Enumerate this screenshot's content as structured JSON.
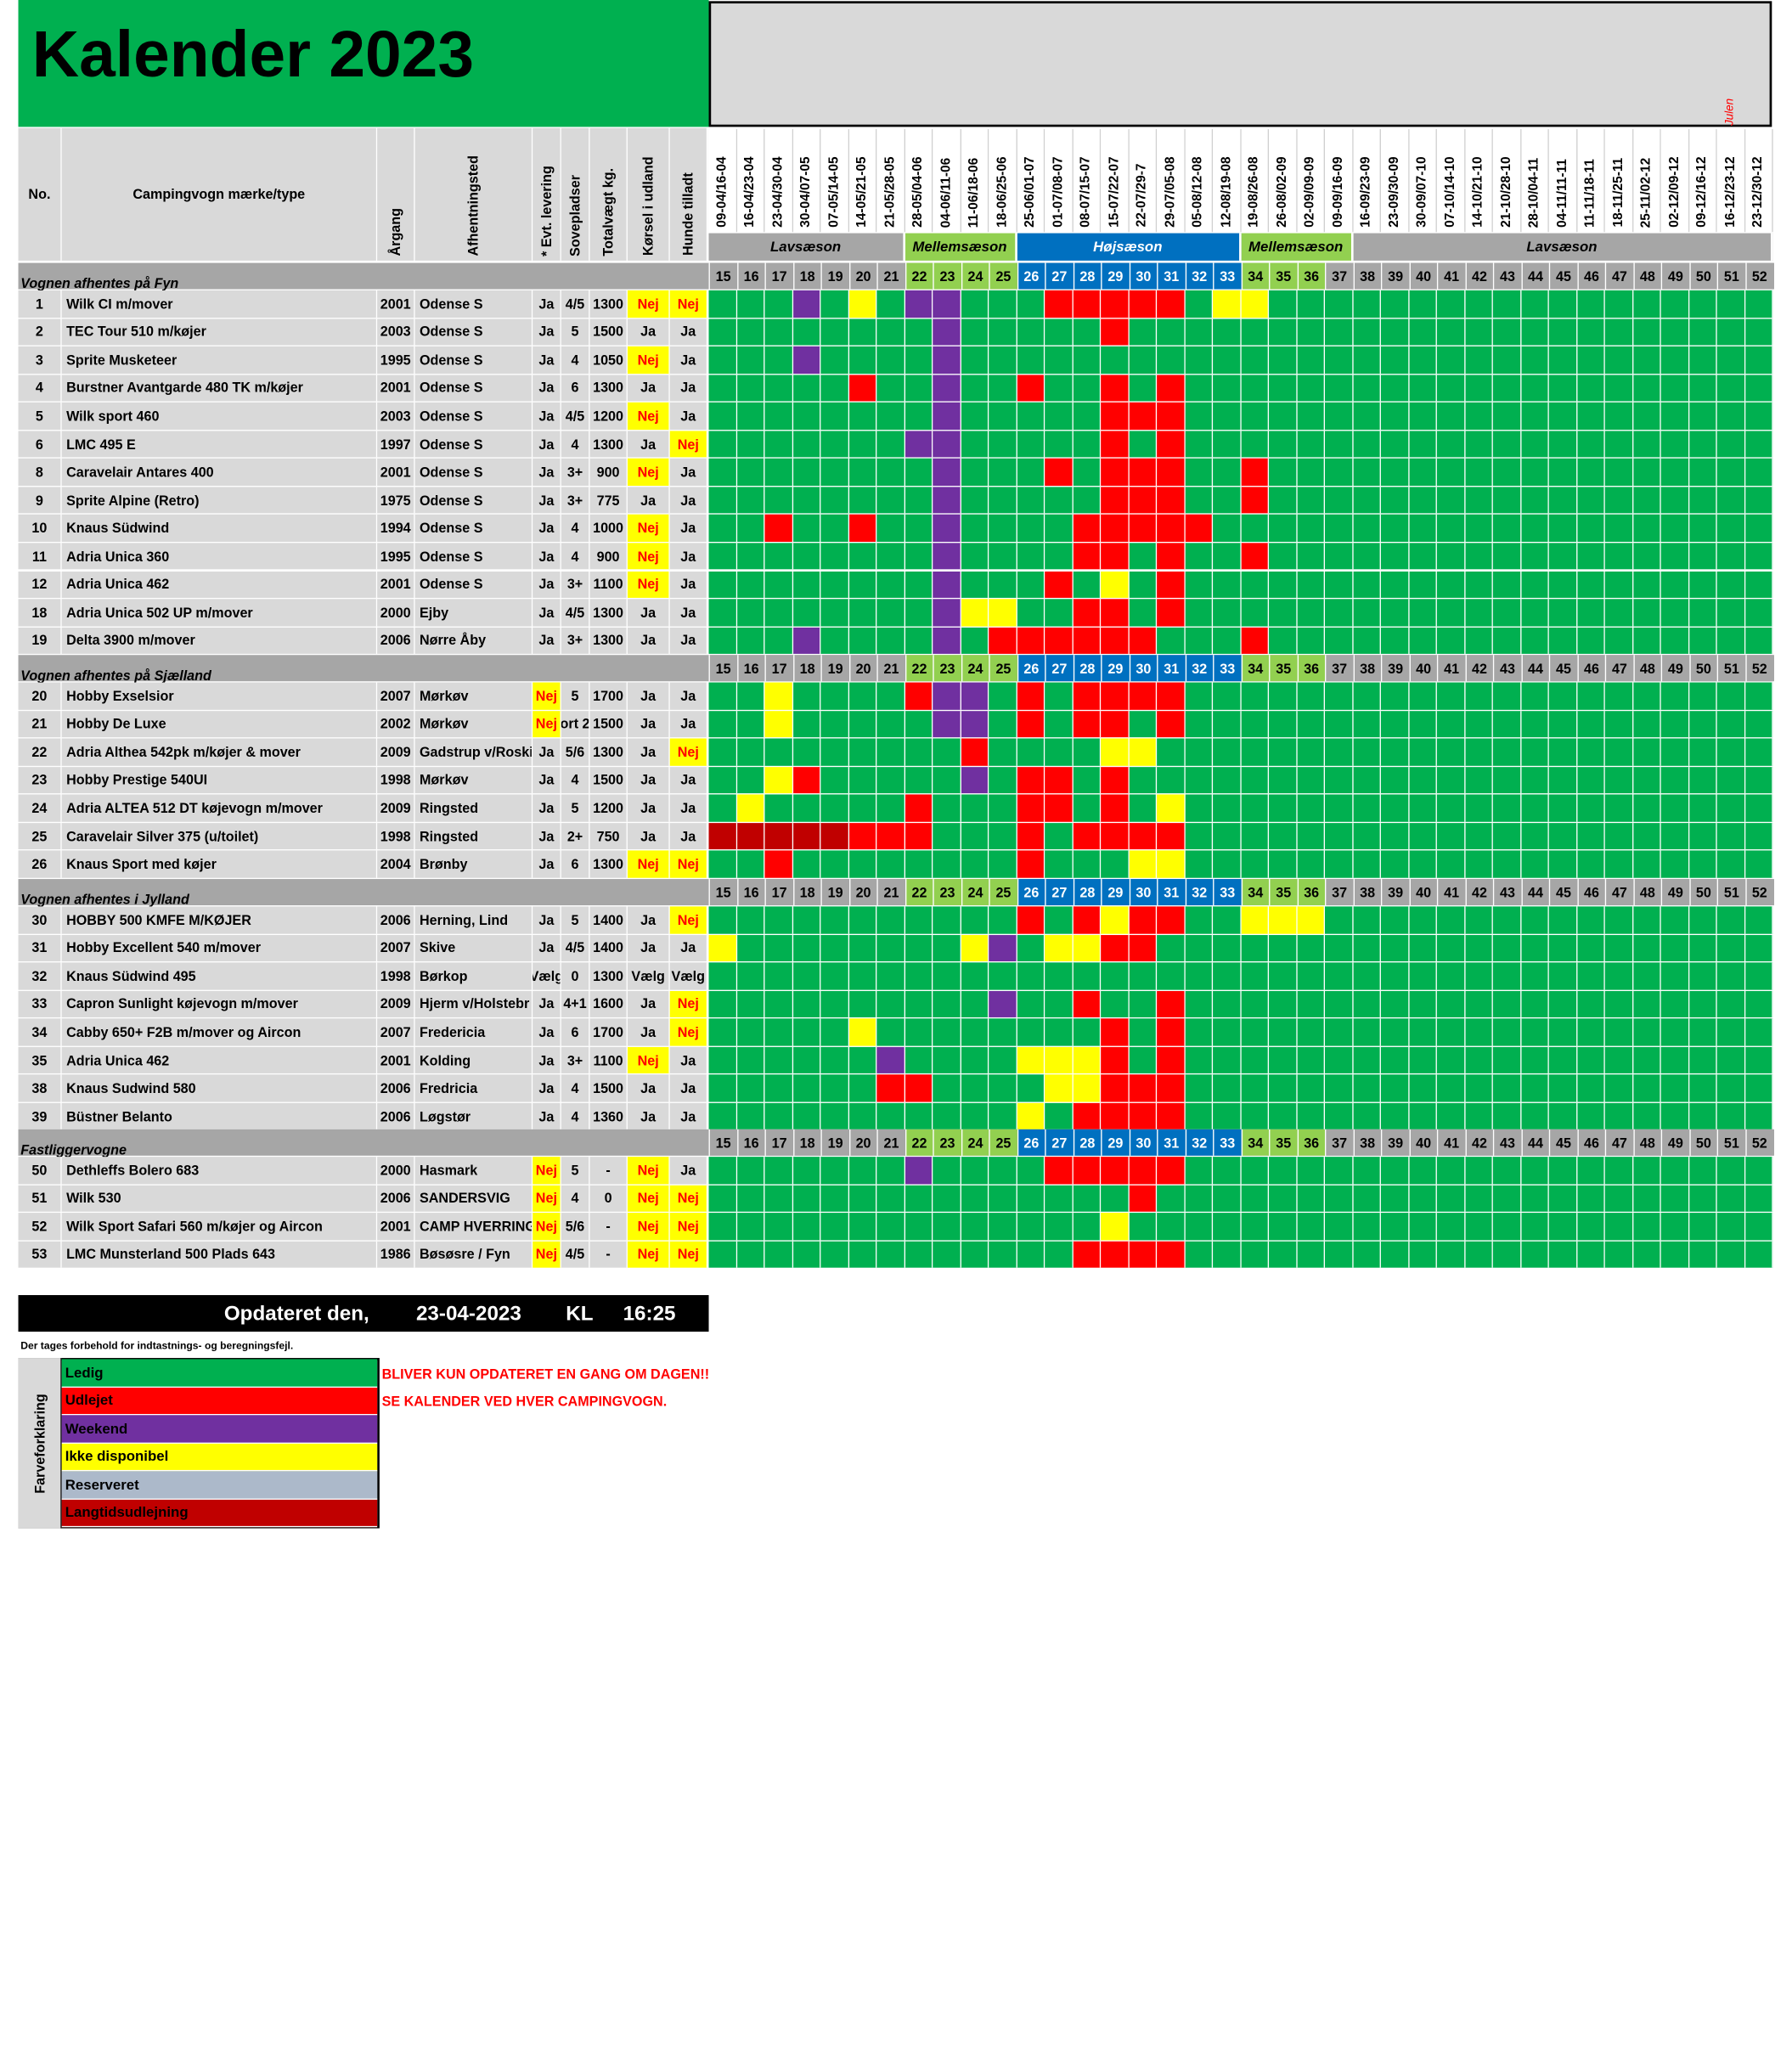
{
  "title": "Kalender 2023",
  "julen": "Julen",
  "headers": {
    "no": "No.",
    "type": "Campingvogn mærke/type",
    "year": "Årgang",
    "place": "Afhentningsted",
    "delivery": "* Evt. levering",
    "beds": "Sovepladser",
    "weight": "Totalvægt kg.",
    "abroad": "Kørsel i udland",
    "dogs": "Hunde tilladt"
  },
  "dates": [
    "09-04/16-04",
    "16-04/23-04",
    "23-04/30-04",
    "30-04/07-05",
    "07-05/14-05",
    "14-05/21-05",
    "21-05/28-05",
    "28-05/04-06",
    "04-06/11-06",
    "11-06/18-06",
    "18-06/25-06",
    "25-06/01-07",
    "01-07/08-07",
    "08-07/15-07",
    "15-07/22-07",
    "22-07/29-7",
    "29-07/05-08",
    "05-08/12-08",
    "12-08/19-08",
    "19-08/26-08",
    "26-08/02-09",
    "02-09/09-09",
    "09-09/16-09",
    "16-09/23-09",
    "23-09/30-09",
    "30-09/07-10",
    "07-10/14-10",
    "14-10/21-10",
    "21-10/28-10",
    "28-10/04-11",
    "04-11/11-11",
    "11-11/18-11",
    "18-11/25-11",
    "25-11/02-12",
    "02-12/09-12",
    "09-12/16-12",
    "16-12/23-12",
    "23-12/30-12"
  ],
  "weeks": [
    "15",
    "16",
    "17",
    "18",
    "19",
    "20",
    "21",
    "22",
    "23",
    "24",
    "25",
    "26",
    "27",
    "28",
    "29",
    "30",
    "31",
    "32",
    "33",
    "34",
    "35",
    "36",
    "37",
    "38",
    "39",
    "40",
    "41",
    "42",
    "43",
    "44",
    "45",
    "46",
    "47",
    "48",
    "49",
    "50",
    "51",
    "52"
  ],
  "seasons": [
    {
      "label": "Lavsæson",
      "span": 7,
      "color": "#a6a6a6"
    },
    {
      "label": "Mellemsæson",
      "span": 4,
      "color": "#92d050"
    },
    {
      "label": "Højsæson",
      "span": 8,
      "color": "#0070c0"
    },
    {
      "label": "Mellemsæson",
      "span": 4,
      "color": "#92d050"
    },
    {
      "label": "Lavsæson",
      "span": 15,
      "color": "#a6a6a6"
    }
  ],
  "week_colors": {
    "g": "#a6a6a6",
    "l": "#92d050",
    "b": "#0070c0"
  },
  "status_colors": {
    "G": "#00b050",
    "R": "#ff0000",
    "P": "#7030a0",
    "Y": "#ffff00",
    "S": "#acb9ca",
    "D": "#c00000"
  },
  "sections": [
    {
      "label": "Vognen afhentes på Fyn",
      "rows": [
        {
          "no": "1",
          "type": "Wilk CI m/mover",
          "year": "2001",
          "place": "Odense S",
          "delivery": "Ja",
          "beds": "4/5",
          "weight": "1300",
          "abroad": "Nej",
          "dogs": "Nej",
          "cal": "GGGPGYGPPGGGRRRRRGYYGGGGGGGGGGGGGGGGGG"
        },
        {
          "no": "2",
          "type": "TEC Tour 510 m/køjer",
          "year": "2003",
          "place": "Odense S",
          "delivery": "Ja",
          "beds": "5",
          "weight": "1500",
          "abroad": "Ja",
          "dogs": "Ja",
          "cal": "GGGGGGGGPGGGGGRGGGGGGGGGGGGGGGGGGGGGGG"
        },
        {
          "no": "3",
          "type": "Sprite Musketeer",
          "year": "1995",
          "place": "Odense S",
          "delivery": "Ja",
          "beds": "4",
          "weight": "1050",
          "abroad": "Nej",
          "dogs": "Ja",
          "cal": "GGGPGGGGPGGGGGGGGGGGGGGGGGGGGGGGGGGGGG"
        },
        {
          "no": "4",
          "type": "Burstner Avantgarde 480 TK m/køjer",
          "year": "2001",
          "place": "Odense S",
          "delivery": "Ja",
          "beds": "6",
          "weight": "1300",
          "abroad": "Ja",
          "dogs": "Ja",
          "cal": "GGGGGRGGPGGRGGRGRGGGGGGGGGGGGGGGGGGGGG"
        },
        {
          "no": "5",
          "type": "Wilk sport 460",
          "year": "2003",
          "place": "Odense S",
          "delivery": "Ja",
          "beds": "4/5",
          "weight": "1200",
          "abroad": "Nej",
          "dogs": "Ja",
          "cal": "GGGGGGGGPGGGGGRRRGGGGGGGGGGGGGGGGGGGGG"
        },
        {
          "no": "6",
          "type": "LMC 495 E",
          "year": "1997",
          "place": "Odense S",
          "delivery": "Ja",
          "beds": "4",
          "weight": "1300",
          "abroad": "Ja",
          "dogs": "Nej",
          "cal": "GGGGGGGPPGGGGGRGRGGGGGGGGGGGGGGGGGGGGG"
        },
        {
          "no": "8",
          "type": "Caravelair Antares 400",
          "year": "2001",
          "place": "Odense S",
          "delivery": "Ja",
          "beds": "3+",
          "weight": "900",
          "abroad": "Nej",
          "dogs": "Ja",
          "cal": "GGGGGGGGPGGGRGRRRGGRGGGGGGGGGGGGGGGGGG"
        },
        {
          "no": "9",
          "type": "Sprite Alpine (Retro)",
          "year": "1975",
          "place": "Odense S",
          "delivery": "Ja",
          "beds": "3+",
          "weight": "775",
          "abroad": "Ja",
          "dogs": "Ja",
          "cal": "GGGGGGGGPGGGGGRRRGGRGGGGGGGGGGGGGGGGGG"
        },
        {
          "no": "10",
          "type": "Knaus Südwind",
          "year": "1994",
          "place": "Odense S",
          "delivery": "Ja",
          "beds": "4",
          "weight": "1000",
          "abroad": "Nej",
          "dogs": "Ja",
          "cal": "GGRGGRGGPGGGGRRRRRGGGGGGGGGGGGGGGGGGGG"
        },
        {
          "no": "11",
          "type": "Adria Unica 360",
          "year": "1995",
          "place": "Odense S",
          "delivery": "Ja",
          "beds": "4",
          "weight": "900",
          "abroad": "Nej",
          "dogs": "Ja",
          "cal": "GGGGGGGGPGGGGRRGRGGRGGGGGGGGGGGGGGGGGG"
        },
        {
          "no": "12",
          "type": "Adria Unica 462",
          "year": "2001",
          "place": "Odense S",
          "delivery": "Ja",
          "beds": "3+",
          "weight": "1100",
          "abroad": "Nej",
          "dogs": "Ja",
          "cal": "GGGGGGGGPGGGRGYGRGGGGGGGGGGGGGGGGGGGGG"
        },
        {
          "no": "18",
          "type": "Adria Unica 502 UP m/mover",
          "year": "2000",
          "place": "Ejby",
          "delivery": "Ja",
          "beds": "4/5",
          "weight": "1300",
          "abroad": "Ja",
          "dogs": "Ja",
          "cal": "GGGGGGGGPYYGGRRGRGGGGGGGGGGGGGGGGGGGGG"
        },
        {
          "no": "19",
          "type": "Delta 3900 m/mover",
          "year": "2006",
          "place": "Nørre Åby",
          "delivery": "Ja",
          "beds": "3+",
          "weight": "1300",
          "abroad": "Ja",
          "dogs": "Ja",
          "cal": "GGGPGGGGPGRRRRRRGGGRGGGGGGGGGGGGGGGGGG"
        }
      ]
    },
    {
      "label": "Vognen afhentes på Sjælland",
      "rows": [
        {
          "no": "20",
          "type": "Hobby Exselsior",
          "year": "2007",
          "place": "Mørkøv",
          "delivery": "Nej",
          "beds": "5",
          "weight": "1700",
          "abroad": "Ja",
          "dogs": "Ja",
          "cal": "GGYGGGGRPPGRGRRRRGGGGGGGGGGGGGGGGGGGGG"
        },
        {
          "no": "21",
          "type": "Hobby De Luxe",
          "year": "2002",
          "place": "Mørkøv",
          "delivery": "Nej",
          "beds": "ort 2",
          "weight": "1500",
          "abroad": "Ja",
          "dogs": "Ja",
          "cal": "GGYGGGGGPPGRGRRGRGGGGGGGGGGGGGGGGGGGGG"
        },
        {
          "no": "22",
          "type": "Adria Althea 542pk m/køjer & mover",
          "year": "2009",
          "place": "Gadstrup v/Roskil",
          "delivery": "Ja",
          "beds": "5/6",
          "weight": "1300",
          "abroad": "Ja",
          "dogs": "Nej",
          "cal": "GGGGGGGGGRGGGGYYGGGGGGGGGGGGGGGGGGGGGG"
        },
        {
          "no": "23",
          "type": "Hobby Prestige 540UI",
          "year": "1998",
          "place": "Mørkøv",
          "delivery": "Ja",
          "beds": "4",
          "weight": "1500",
          "abroad": "Ja",
          "dogs": "Ja",
          "cal": "GGYRGGGGGPGRRGRGGGGGGGGGGGGGGGGGGGGGGG"
        },
        {
          "no": "24",
          "type": "Adria ALTEA 512 DT  køjevogn m/mover",
          "year": "2009",
          "place": "Ringsted",
          "delivery": "Ja",
          "beds": "5",
          "weight": "1200",
          "abroad": "Ja",
          "dogs": "Ja",
          "cal": "GYGGGGGRGGGRRGRGYGGGGGGGGGGGGGGGGGGGGG"
        },
        {
          "no": "25",
          "type": "Caravelair Silver 375 (u/toilet)",
          "year": "1998",
          "place": "Ringsted",
          "delivery": "Ja",
          "beds": "2+",
          "weight": "750",
          "abroad": "Ja",
          "dogs": "Ja",
          "cal": "DDDDDRRRGGGRGRRRRGGGGGGGGGGGGGGGGGGGGG"
        },
        {
          "no": "26",
          "type": "Knaus Sport med køjer",
          "year": "2004",
          "place": "Brønby",
          "delivery": "Ja",
          "beds": "6",
          "weight": "1300",
          "abroad": "Nej",
          "dogs": "Nej",
          "cal": "GGRGGGGGGGGRGGGYYGGGGGGGGGGGGGGGGGGGGG"
        }
      ]
    },
    {
      "label": "Vognen afhentes i Jylland",
      "rows": [
        {
          "no": "30",
          "type": "HOBBY 500 KMFE M/KØJER",
          "year": "2006",
          "place": "Herning, Lind",
          "delivery": "Ja",
          "beds": "5",
          "weight": "1400",
          "abroad": "Ja",
          "dogs": "Nej",
          "cal": "GGGGGGGGGGGRGRYRRGGYYYGGGGGGGGGGGGGGGG"
        },
        {
          "no": "31",
          "type": "Hobby Excellent 540 m/mover",
          "year": "2007",
          "place": "Skive",
          "delivery": "Ja",
          "beds": "4/5",
          "weight": "1400",
          "abroad": "Ja",
          "dogs": "Ja",
          "cal": "YGGGGGGGGYPGYYRRGGGGGGGGGGGGGGGGGGGGGG"
        },
        {
          "no": "32",
          "type": "Knaus Südwind 495",
          "year": "1998",
          "place": "Børkop",
          "delivery": "Vælg",
          "beds": "0",
          "weight": "1300",
          "abroad": "Vælg",
          "dogs": "Vælg",
          "cal": "GGGGGGGGGGGGGGGGGGGGGGGGGGGGGGGGGGGGGG"
        },
        {
          "no": "33",
          "type": "Capron Sunlight køjevogn m/mover",
          "year": "2009",
          "place": "Hjerm v/Holstebr",
          "delivery": "Ja",
          "beds": "4+1",
          "weight": "1600",
          "abroad": "Ja",
          "dogs": "Nej",
          "cal": "GGGGGGGGGGPGGRGGRGGGGGGGGGGGGGGGGGGGGG"
        },
        {
          "no": "34",
          "type": "Cabby 650+ F2B m/mover og Aircon",
          "year": "2007",
          "place": " Fredericia",
          "delivery": "Ja",
          "beds": "6",
          "weight": "1700",
          "abroad": "Ja",
          "dogs": "Nej",
          "cal": "GGGGGYGGGGGGGGRGRGGGGGGGGGGGGGGGGGGGGG"
        },
        {
          "no": "35",
          "type": "Adria Unica 462",
          "year": "2001",
          "place": "Kolding",
          "delivery": "Ja",
          "beds": "3+",
          "weight": "1100",
          "abroad": "Nej",
          "dogs": "Ja",
          "cal": "GGGGGGPGGGGYYYRGRGGGGGGGGGGGGGGGGGGGGG"
        },
        {
          "no": "38",
          "type": "Knaus Sudwind 580",
          "year": "2006",
          "place": "Fredricia",
          "delivery": "Ja",
          "beds": "4",
          "weight": "1500",
          "abroad": "Ja",
          "dogs": "Ja",
          "cal": "GGGGGGRRGGGGYYRRRGGGGGGGGGGGGGGGGGGGGG"
        },
        {
          "no": "39",
          "type": "Büstner Belanto",
          "year": "2006",
          "place": "Løgstør",
          "delivery": "Ja",
          "beds": "4",
          "weight": "1360",
          "abroad": "Ja",
          "dogs": "Ja",
          "cal": "GGGGGGGGGGGYGRRRRGGGGGGGGGGGGGGGGGGGGG"
        }
      ]
    },
    {
      "label": "Fastliggervogne",
      "rows": [
        {
          "no": "50",
          "type": "Dethleffs Bolero 683",
          "year": "2000",
          "place": "Hasmark",
          "delivery": "Nej",
          "beds": "5",
          "weight": "-",
          "abroad": "Nej",
          "dogs": "Ja",
          "cal": "GGGGGGGPGGGGRRRRRGGGGGGGGGGGGGGGGGGGGG"
        },
        {
          "no": "51",
          "type": "Wilk 530",
          "year": "2006",
          "place": "SANDERSVIG",
          "delivery": "Nej",
          "beds": "4",
          "weight": "0",
          "abroad": "Nej",
          "dogs": "Nej",
          "cal": "GGGGGGGGGGGGGGGRGGGGGGGGGGGGGGGGGGGGGG"
        },
        {
          "no": "52",
          "type": "Wilk Sport Safari 560 m/køjer og Aircon",
          "year": "2001",
          "place": "CAMP HVERRINGE",
          "delivery": "Nej",
          "beds": "5/6",
          "weight": "-",
          "abroad": "Nej",
          "dogs": "Nej",
          "cal": "GGGGGGGGGGGGGGYGGGGGGGGGGGGGGGGGGGGGGG"
        },
        {
          "no": "53",
          "type": "LMC Munsterland 500 Plads 643",
          "year": "1986",
          "place": "Bøsøsre / Fyn",
          "delivery": "Nej",
          "beds": "4/5",
          "weight": "-",
          "abroad": "Nej",
          "dogs": "Nej",
          "cal": "GGGGGGGGGGGGGRRRRGGGGGGGGGGGGGGGGGGGGG"
        }
      ]
    }
  ],
  "updated": {
    "label": "Opdateret den,",
    "date": "23-04-2023",
    "kl": "KL",
    "time": "16:25"
  },
  "disclaimer": "Der tages forbehold for indtastnings- og beregningsfejl.",
  "legend": {
    "title": "Farveforklaring",
    "items": [
      {
        "label": "Ledig",
        "color": "#00b050",
        "text": "#000000"
      },
      {
        "label": "Udlejet",
        "color": "#ff0000",
        "text": "#000000"
      },
      {
        "label": "Weekend",
        "color": "#7030a0",
        "text": "#000000"
      },
      {
        "label": "Ikke disponibel",
        "color": "#ffff00",
        "text": "#000000"
      },
      {
        "label": "Reserveret",
        "color": "#acb9ca",
        "text": "#000000"
      },
      {
        "label": "Langtidsudlejning",
        "color": "#c00000",
        "text": "#000000"
      }
    ]
  },
  "notes": [
    "BLIVER KUN OPDATERET EN GANG OM DAGEN!!",
    "SE KALENDER VED HVER CAMPINGVOGN."
  ]
}
